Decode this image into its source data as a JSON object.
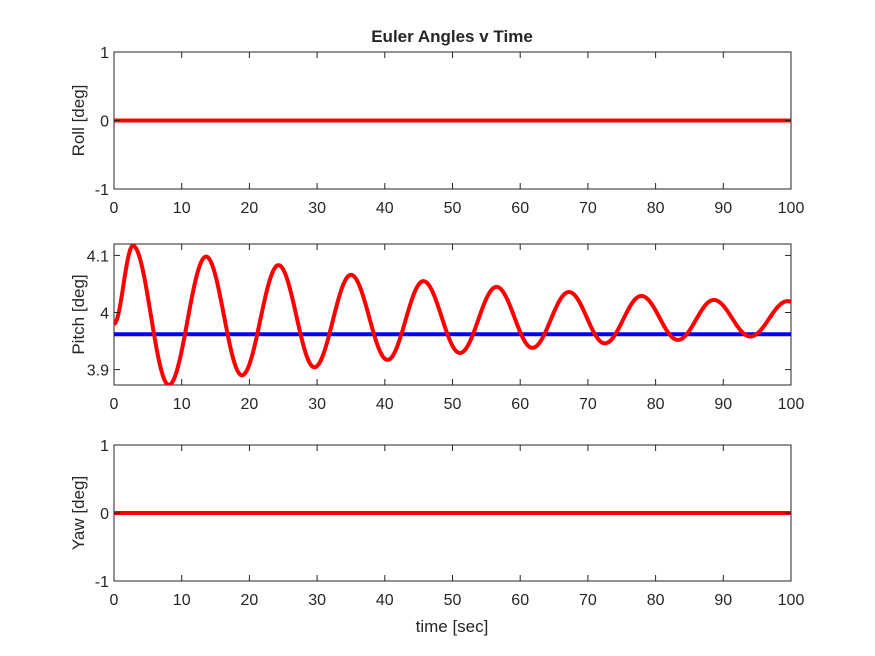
{
  "chart_data": [
    {
      "type": "line",
      "title": "Euler Angles v Time",
      "xlabel": "",
      "ylabel": "Roll [deg]",
      "xlim": [
        0,
        100
      ],
      "ylim": [
        -1,
        1
      ],
      "xticks": [
        0,
        10,
        20,
        30,
        40,
        50,
        60,
        70,
        80,
        90,
        100
      ],
      "yticks": [
        -1,
        0,
        1
      ],
      "ytick_labels": [
        "-1",
        "0",
        "1"
      ],
      "grid": false,
      "series": [
        {
          "color": "#ff0000",
          "x": [
            0,
            100
          ],
          "y": [
            0,
            0
          ]
        }
      ]
    },
    {
      "type": "line",
      "title": "",
      "xlabel": "",
      "ylabel": "Pitch [deg]",
      "xlim": [
        0,
        100
      ],
      "ylim": [
        3.873,
        4.12
      ],
      "xticks": [
        0,
        10,
        20,
        30,
        40,
        50,
        60,
        70,
        80,
        90,
        100
      ],
      "yticks": [
        3.9,
        4.0,
        4.1
      ],
      "ytick_labels": [
        "3.9",
        "4",
        "4.1"
      ],
      "grid": false,
      "series": [
        {
          "color": "#0000ff",
          "x": [
            0,
            100
          ],
          "y": [
            3.962,
            3.962
          ]
        },
        {
          "color": "#ff0000",
          "x": [
            0,
            2.8,
            8.1,
            13.6,
            18.9,
            24.3,
            29.6,
            35.0,
            40.4,
            45.7,
            51.1,
            56.5,
            61.8,
            67.2,
            72.5,
            77.9,
            83.3,
            88.6,
            94.0,
            99.5,
            100
          ],
          "y": [
            3.98,
            4.117,
            3.873,
            4.098,
            3.89,
            4.083,
            3.904,
            4.066,
            3.917,
            4.055,
            3.929,
            4.045,
            3.938,
            4.036,
            3.946,
            4.029,
            3.952,
            4.022,
            3.958,
            4.02,
            4.019
          ]
        }
      ]
    },
    {
      "type": "line",
      "title": "",
      "xlabel": "time [sec]",
      "ylabel": "Yaw [deg]",
      "xlim": [
        0,
        100
      ],
      "ylim": [
        -1,
        1
      ],
      "xticks": [
        0,
        10,
        20,
        30,
        40,
        50,
        60,
        70,
        80,
        90,
        100
      ],
      "yticks": [
        -1,
        0,
        1
      ],
      "ytick_labels": [
        "-1",
        "0",
        "1"
      ],
      "grid": false,
      "series": [
        {
          "color": "#ff0000",
          "x": [
            0,
            100
          ],
          "y": [
            0,
            0
          ]
        }
      ]
    }
  ]
}
